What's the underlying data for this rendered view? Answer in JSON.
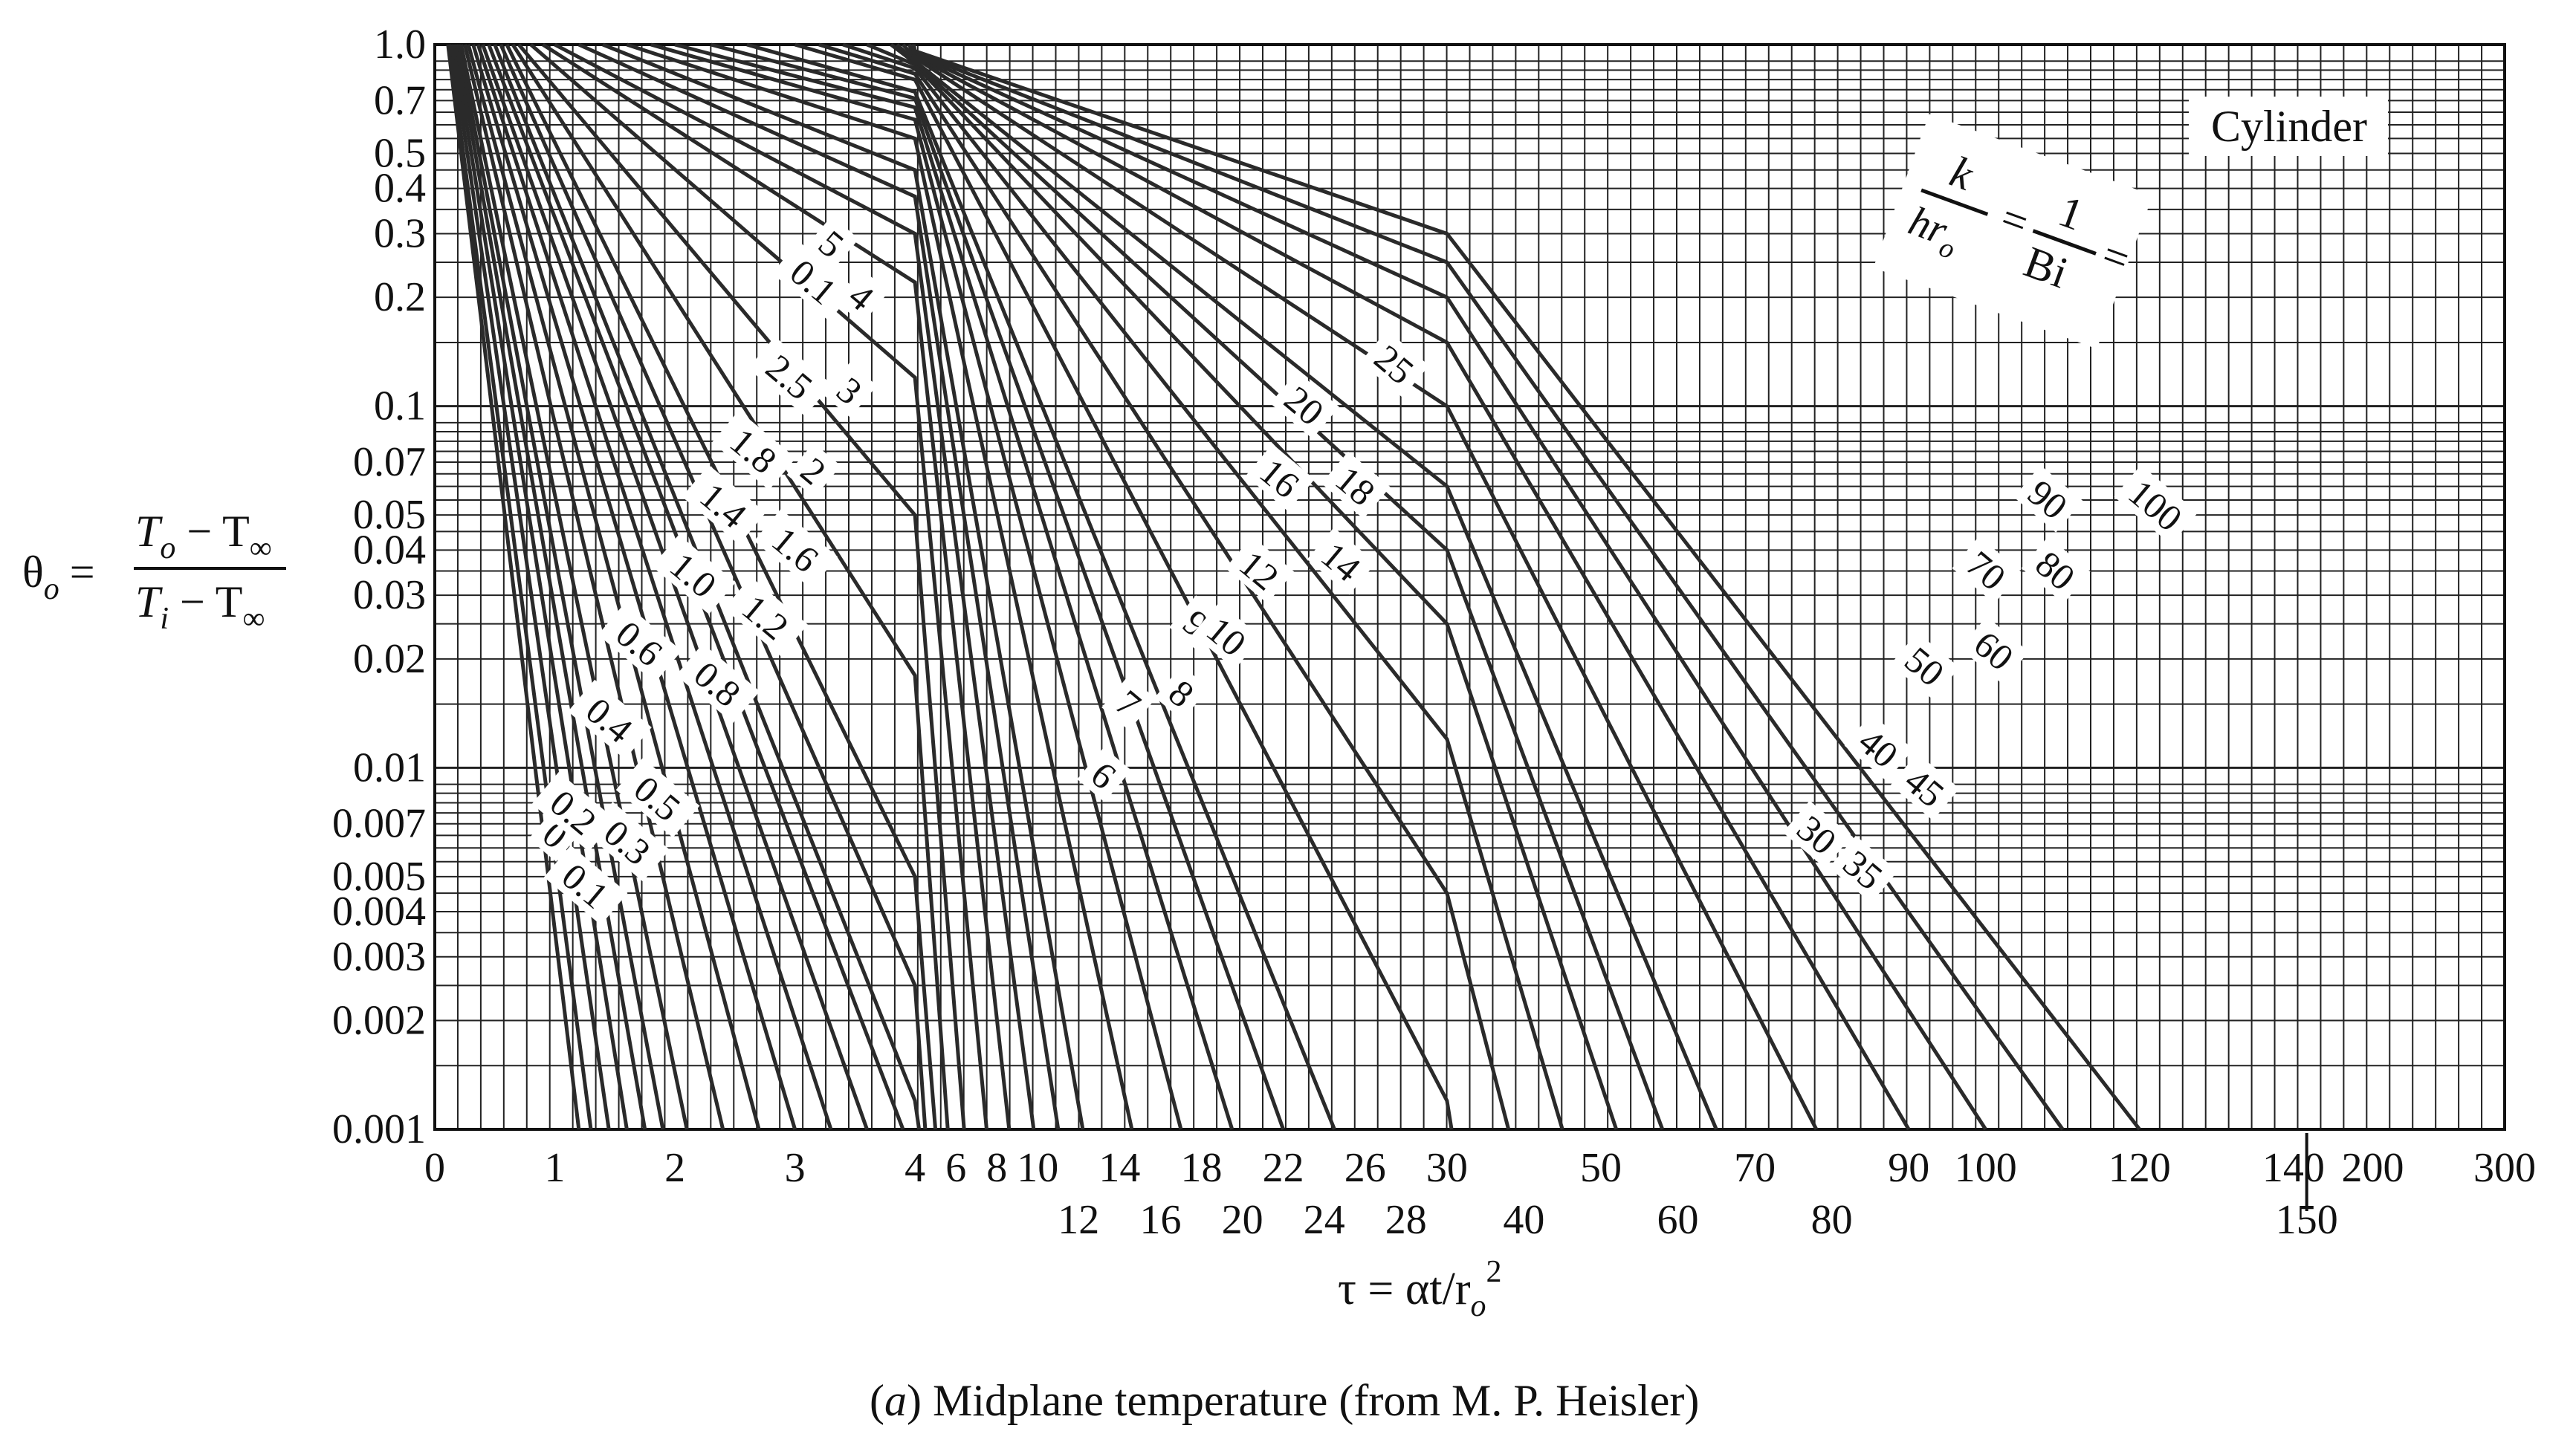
{
  "chart_data": {
    "type": "line",
    "y_scale": "log",
    "ylim": [
      0.001,
      1.0
    ],
    "x_axis_note": "piecewise-linear tau axis with changes of scale at 4, 30 and 140",
    "panel_label": "Cylinder",
    "y_axis_label": {
      "theta": "θ",
      "theta_sub": "o",
      "equals": "=",
      "numerator": "T",
      "numerator_sub": "o",
      "numerator_rest": " − T",
      "numerator_inf": "∞",
      "denominator": "T",
      "denominator_sub": "i",
      "denominator_rest": " − T",
      "denominator_inf": "∞"
    },
    "x_axis_label": {
      "prefix": "τ = αt/r",
      "sub": "o",
      "sup": "2"
    },
    "param_label": {
      "k": "k",
      "hr": "hr",
      "hr_sub": "o",
      "eq1": "=",
      "one": "1",
      "bi": "Bi",
      "eq2": "="
    },
    "caption": {
      "prefix": "(",
      "letter": "a",
      "rest": ") Midplane temperature (from M. P. Heisler)"
    },
    "y_ticks": [
      "1.0",
      "0.7",
      "0.5",
      "0.4",
      "0.3",
      "0.2",
      "0.1",
      "0.07",
      "0.05",
      "0.04",
      "0.03",
      "0.02",
      "0.01",
      "0.007",
      "0.005",
      "0.004",
      "0.003",
      "0.002",
      "0.001"
    ],
    "y_tick_values": [
      1.0,
      0.7,
      0.5,
      0.4,
      0.3,
      0.2,
      0.1,
      0.07,
      0.05,
      0.04,
      0.03,
      0.02,
      0.01,
      0.007,
      0.005,
      0.004,
      0.003,
      0.002,
      0.001
    ],
    "x_ticks_upper": [
      "0",
      "1",
      "2",
      "3",
      "4",
      "6",
      "8",
      "10",
      "14",
      "18",
      "22",
      "26",
      "30",
      "50",
      "70",
      "90",
      "100",
      "120",
      "140",
      "200",
      "300"
    ],
    "x_ticks_lower": [
      "12",
      "16",
      "20",
      "24",
      "28",
      "40",
      "60",
      "80",
      "150"
    ],
    "x_tick_values_upper": [
      0,
      1,
      2,
      3,
      4,
      6,
      8,
      10,
      14,
      18,
      22,
      26,
      30,
      50,
      70,
      90,
      100,
      120,
      140,
      200,
      300
    ],
    "x_tick_values_lower": [
      12,
      16,
      20,
      24,
      28,
      40,
      60,
      80,
      150
    ],
    "series": [
      {
        "name": "0",
        "x": [
          0.11,
          1.2
        ],
        "y": [
          1.0,
          0.001
        ]
      },
      {
        "name": "0.1",
        "x": [
          0.12,
          1.3
        ],
        "y": [
          1.0,
          0.001
        ]
      },
      {
        "name": "0.2",
        "x": [
          0.14,
          1.45
        ],
        "y": [
          1.0,
          0.001
        ]
      },
      {
        "name": "0.3",
        "x": [
          0.16,
          1.6
        ],
        "y": [
          1.0,
          0.001
        ]
      },
      {
        "name": "0.4",
        "x": [
          0.18,
          1.75
        ],
        "y": [
          1.0,
          0.001
        ]
      },
      {
        "name": "0.5",
        "x": [
          0.2,
          1.9
        ],
        "y": [
          1.0,
          0.001
        ]
      },
      {
        "name": "0.6",
        "x": [
          0.22,
          2.1
        ],
        "y": [
          1.0,
          0.001
        ]
      },
      {
        "name": "0.8",
        "x": [
          0.25,
          2.4
        ],
        "y": [
          1.0,
          0.001
        ]
      },
      {
        "name": "1.0",
        "x": [
          0.28,
          2.7
        ],
        "y": [
          1.0,
          0.001
        ]
      },
      {
        "name": "1.2",
        "x": [
          0.32,
          3.0
        ],
        "y": [
          1.0,
          0.001
        ]
      },
      {
        "name": "1.4",
        "x": [
          0.36,
          3.3
        ],
        "y": [
          1.0,
          0.001
        ]
      },
      {
        "name": "1.6",
        "x": [
          0.4,
          3.6
        ],
        "y": [
          1.0,
          0.001
        ]
      },
      {
        "name": "1.8",
        "x": [
          0.45,
          3.9
        ],
        "y": [
          1.0,
          0.001
        ]
      },
      {
        "name": "2",
        "x": [
          0.5,
          4.0,
          4.2
        ],
        "y": [
          1.0,
          0.0012,
          0.001
        ]
      },
      {
        "name": "2.5",
        "x": [
          0.55,
          4.0,
          4.5
        ],
        "y": [
          1.0,
          0.0025,
          0.001
        ]
      },
      {
        "name": "3",
        "x": [
          0.6,
          4.0,
          5.0
        ],
        "y": [
          1.0,
          0.005,
          0.001
        ]
      },
      {
        "name": "4",
        "x": [
          0.65,
          4.0,
          5.6
        ],
        "y": [
          1.0,
          0.018,
          0.001
        ]
      },
      {
        "name": "5",
        "x": [
          0.7,
          4.0,
          6.4
        ],
        "y": [
          1.0,
          0.05,
          0.001
        ]
      },
      {
        "name": "6",
        "x": [
          0.8,
          4.0,
          7.5
        ],
        "y": [
          1.0,
          0.12,
          0.001
        ]
      },
      {
        "name": "7",
        "x": [
          0.9,
          4.0,
          8.6
        ],
        "y": [
          1.0,
          0.22,
          0.001
        ]
      },
      {
        "name": "8",
        "x": [
          1.0,
          4.0,
          9.8
        ],
        "y": [
          1.0,
          0.3,
          0.001
        ]
      },
      {
        "name": "9",
        "x": [
          1.2,
          4.0,
          11.0
        ],
        "y": [
          1.0,
          0.38,
          0.001
        ]
      },
      {
        "name": "10",
        "x": [
          1.4,
          4.0,
          12.2
        ],
        "y": [
          1.0,
          0.45,
          0.001
        ]
      },
      {
        "name": "12",
        "x": [
          1.6,
          4.0,
          14.6
        ],
        "y": [
          1.0,
          0.55,
          0.001
        ]
      },
      {
        "name": "14",
        "x": [
          1.8,
          4.0,
          17.0
        ],
        "y": [
          1.0,
          0.62,
          0.001
        ]
      },
      {
        "name": "16",
        "x": [
          2.0,
          4.0,
          19.5
        ],
        "y": [
          1.0,
          0.67,
          0.001
        ]
      },
      {
        "name": "18",
        "x": [
          2.3,
          4.0,
          22.0
        ],
        "y": [
          1.0,
          0.71,
          0.001
        ]
      },
      {
        "name": "20",
        "x": [
          2.6,
          4.0,
          24.5
        ],
        "y": [
          1.0,
          0.74,
          0.001
        ]
      },
      {
        "name": "25",
        "x": [
          3.0,
          4.0,
          30.0,
          30.6
        ],
        "y": [
          1.0,
          0.8,
          0.0012,
          0.001
        ]
      },
      {
        "name": "30",
        "x": [
          3.2,
          4.0,
          30.0,
          38.0
        ],
        "y": [
          1.0,
          0.83,
          0.0045,
          0.001
        ]
      },
      {
        "name": "35",
        "x": [
          3.4,
          4.0,
          30.0,
          45.0
        ],
        "y": [
          1.0,
          0.86,
          0.012,
          0.001
        ]
      },
      {
        "name": "40",
        "x": [
          3.6,
          4.0,
          30.0,
          52.0
        ],
        "y": [
          1.0,
          0.88,
          0.025,
          0.001
        ]
      },
      {
        "name": "45",
        "x": [
          3.8,
          4.0,
          30.0,
          58.0
        ],
        "y": [
          1.0,
          0.89,
          0.04,
          0.001
        ]
      },
      {
        "name": "50",
        "x": [
          3.85,
          4.0,
          30.0,
          65.0
        ],
        "y": [
          1.0,
          0.9,
          0.06,
          0.001
        ]
      },
      {
        "name": "60",
        "x": [
          3.9,
          4.0,
          30.0,
          78.0
        ],
        "y": [
          1.0,
          0.92,
          0.1,
          0.001
        ]
      },
      {
        "name": "70",
        "x": [
          3.95,
          4.0,
          30.0,
          90.0
        ],
        "y": [
          1.0,
          0.93,
          0.15,
          0.001
        ]
      },
      {
        "name": "80",
        "x": [
          3.97,
          4.0,
          30.0,
          100.0
        ],
        "y": [
          1.0,
          0.94,
          0.2,
          0.001
        ]
      },
      {
        "name": "90",
        "x": [
          3.98,
          4.0,
          30.0,
          110.0
        ],
        "y": [
          1.0,
          0.95,
          0.25,
          0.001
        ]
      },
      {
        "name": "100",
        "x": [
          3.99,
          4.0,
          30.0,
          120.0
        ],
        "y": [
          1.0,
          0.96,
          0.3,
          0.001
        ]
      }
    ],
    "curve_labels": [
      {
        "text": "0",
        "x": 1.0,
        "y": 0.0065
      },
      {
        "text": "0.1",
        "x": 1.25,
        "y": 0.0047
      },
      {
        "text": "0.2",
        "x": 1.15,
        "y": 0.0075
      },
      {
        "text": "0.3",
        "x": 1.6,
        "y": 0.0062
      },
      {
        "text": "0.4",
        "x": 1.45,
        "y": 0.0135
      },
      {
        "text": "0.5",
        "x": 1.85,
        "y": 0.0082
      },
      {
        "text": "0.6",
        "x": 1.7,
        "y": 0.022
      },
      {
        "text": "0.8",
        "x": 2.35,
        "y": 0.017
      },
      {
        "text": "1.0",
        "x": 2.15,
        "y": 0.034
      },
      {
        "text": "1.2",
        "x": 2.75,
        "y": 0.026
      },
      {
        "text": "1.4",
        "x": 2.4,
        "y": 0.053
      },
      {
        "text": "1.6",
        "x": 3.0,
        "y": 0.04
      },
      {
        "text": "1.8",
        "x": 2.65,
        "y": 0.075
      },
      {
        "text": "2",
        "x": 3.15,
        "y": 0.066
      },
      {
        "text": "2.5",
        "x": 2.95,
        "y": 0.12
      },
      {
        "text": "3",
        "x": 3.45,
        "y": 0.11
      },
      {
        "text": "0.1",
        "x": 3.15,
        "y": 0.22
      },
      {
        "text": "4",
        "x": 3.55,
        "y": 0.2
      },
      {
        "text": "5",
        "x": 3.3,
        "y": 0.28
      },
      {
        "text": "6",
        "x": 13.2,
        "y": 0.0095
      },
      {
        "text": "7",
        "x": 14.4,
        "y": 0.015
      },
      {
        "text": "8",
        "x": 17.0,
        "y": 0.016
      },
      {
        "text": "9",
        "x": 17.7,
        "y": 0.025
      },
      {
        "text": "10",
        "x": 19.2,
        "y": 0.023
      },
      {
        "text": "12",
        "x": 20.8,
        "y": 0.035
      },
      {
        "text": "14",
        "x": 24.8,
        "y": 0.037
      },
      {
        "text": "16",
        "x": 21.8,
        "y": 0.063
      },
      {
        "text": "18",
        "x": 25.5,
        "y": 0.06
      },
      {
        "text": "20",
        "x": 23.0,
        "y": 0.1
      },
      {
        "text": "25",
        "x": 27.4,
        "y": 0.13
      },
      {
        "text": "30",
        "x": 78.0,
        "y": 0.0065
      },
      {
        "text": "35",
        "x": 84.0,
        "y": 0.0052
      },
      {
        "text": "40",
        "x": 86.0,
        "y": 0.0113
      },
      {
        "text": "45",
        "x": 92.0,
        "y": 0.0088
      },
      {
        "text": "50",
        "x": 92.0,
        "y": 0.019
      },
      {
        "text": "60",
        "x": 101.0,
        "y": 0.021
      },
      {
        "text": "70",
        "x": 100.0,
        "y": 0.035
      },
      {
        "text": "80",
        "x": 109.0,
        "y": 0.035
      },
      {
        "text": "90",
        "x": 108.0,
        "y": 0.055
      },
      {
        "text": "100",
        "x": 122.0,
        "y": 0.053
      }
    ]
  }
}
